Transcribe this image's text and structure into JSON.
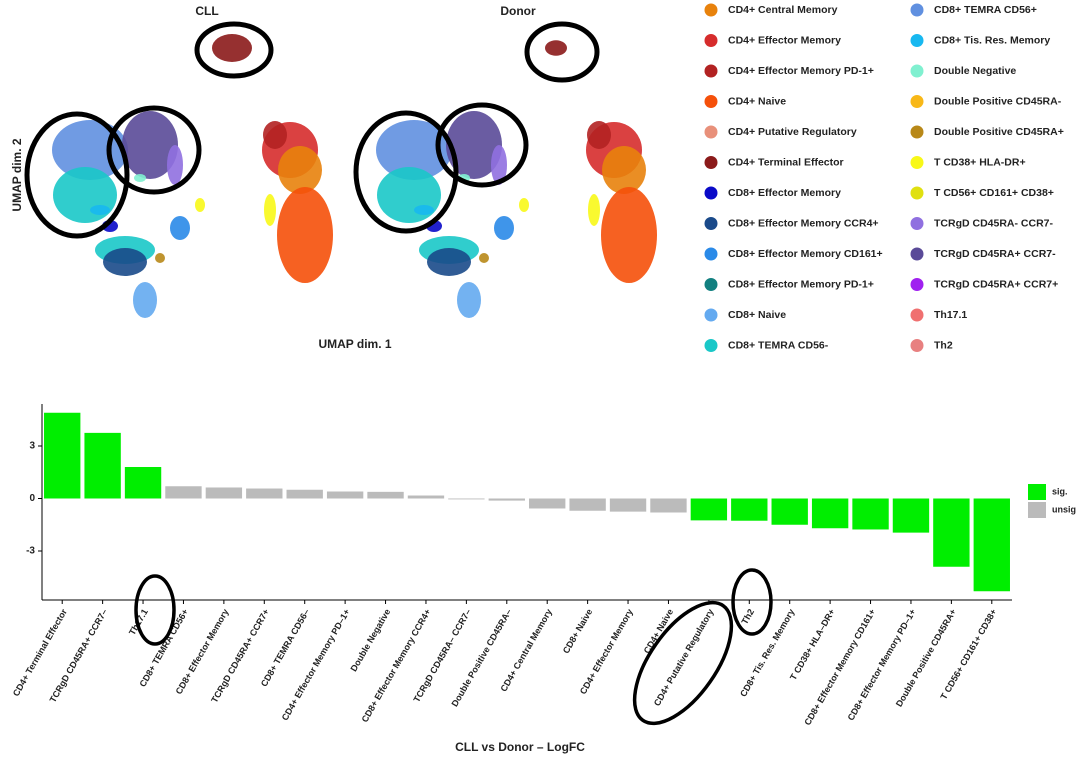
{
  "umap": {
    "panels": [
      "CLL",
      "Donor"
    ],
    "x_label": "UMAP dim. 1",
    "y_label": "UMAP dim. 2",
    "legend": [
      {
        "name": "CD4+ Central Memory",
        "color": "#e8820c"
      },
      {
        "name": "CD4+ Effector Memory",
        "color": "#d62c2c"
      },
      {
        "name": "CD4+ Effector Memory PD-1+",
        "color": "#b22222"
      },
      {
        "name": "CD4+ Naive",
        "color": "#f5500a"
      },
      {
        "name": "CD4+ Putative Regulatory",
        "color": "#e8907a"
      },
      {
        "name": "CD4+ Terminal Effector",
        "color": "#8b1a1a"
      },
      {
        "name": "CD8+ Effector Memory",
        "color": "#0a0ac8"
      },
      {
        "name": "CD8+ Effector Memory CCR4+",
        "color": "#1a4a8a"
      },
      {
        "name": "CD8+ Effector Memory CD161+",
        "color": "#2a8ae8"
      },
      {
        "name": "CD8+ Effector Memory PD-1+",
        "color": "#128080"
      },
      {
        "name": "CD8+ Naive",
        "color": "#64aaf0"
      },
      {
        "name": "CD8+ TEMRA CD56-",
        "color": "#1ac8c8"
      },
      {
        "name": "CD8+ TEMRA CD56+",
        "color": "#6090e0"
      },
      {
        "name": "CD8+ Tis. Res. Memory",
        "color": "#18b8f0"
      },
      {
        "name": "Double Negative",
        "color": "#80f0d0"
      },
      {
        "name": "Double Positive CD45RA-",
        "color": "#f8b818"
      },
      {
        "name": "Double Positive CD45RA+",
        "color": "#b88818"
      },
      {
        "name": "T CD38+ HLA-DR+",
        "color": "#f8f818"
      },
      {
        "name": "T CD56+ CD161+ CD38+",
        "color": "#e0e010"
      },
      {
        "name": "TCRgD CD45RA- CCR7-",
        "color": "#9070e0"
      },
      {
        "name": "TCRgD CD45RA+ CCR7-",
        "color": "#5a4a98"
      },
      {
        "name": "TCRgD CD45RA+ CCR7+",
        "color": "#a020f0"
      },
      {
        "name": "Th17.1",
        "color": "#f07070"
      },
      {
        "name": "Th2",
        "color": "#e88080"
      }
    ]
  },
  "chart_data": {
    "type": "bar",
    "x_label": "CLL vs Donor – LogFC",
    "categories": [
      "CD4+ Terminal Effector",
      "TCRgD CD45RA+ CCR7–",
      "Th17.1",
      "CD8+ TEMRA CD56+",
      "CD8+ Effector Memory",
      "TCRgD CD45RA+ CCR7+",
      "CD8+ TEMRA CD56–",
      "CD4+ Effector Memory PD–1+",
      "Double Negative",
      "CD8+ Effector Memory CCR4+",
      "TCRgD CD45RA– CCR7–",
      "Double Positive CD45RA–",
      "CD4+ Central Memory",
      "CD8+ Naive",
      "CD4+ Effector Memory",
      "CD4+ Naive",
      "CD4+ Putative Regulatory",
      "Th2",
      "CD8+ Tis. Res. Memory",
      "T CD38+ HLA–DR+",
      "CD8+ Effector Memory CD161+",
      "CD8+ Effector Memory PD–1+",
      "Double Positive CD45RA+",
      "T CD56+ CD161+ CD38+"
    ],
    "series": [
      {
        "name": "sig.",
        "color": "#00ee00",
        "values": [
          4.9,
          3.75,
          1.8,
          null,
          null,
          null,
          null,
          null,
          null,
          null,
          null,
          null,
          null,
          null,
          null,
          null,
          -1.25,
          -1.27,
          -1.5,
          -1.7,
          -1.77,
          -1.95,
          -3.9,
          -5.3
        ]
      },
      {
        "name": "unsig.",
        "color": "#bbbbbb",
        "values": [
          null,
          null,
          null,
          0.7,
          0.63,
          0.57,
          0.5,
          0.4,
          0.38,
          0.17,
          -0.05,
          -0.12,
          -0.57,
          -0.7,
          -0.75,
          -0.8,
          null,
          null,
          null,
          null,
          null,
          null,
          null,
          null
        ]
      }
    ],
    "ylim": [
      -5.8,
      5.4
    ],
    "yticks": [
      -3,
      0,
      3
    ]
  }
}
